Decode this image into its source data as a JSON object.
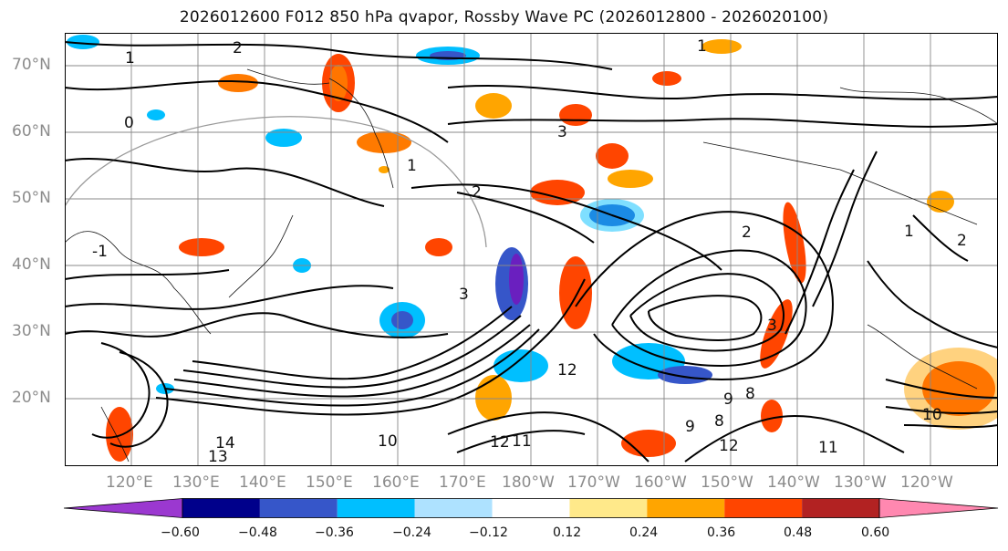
{
  "title": "2026012600 F012 850 hPa qvapor, Rossby Wave PC (2026012800 - 2026020100)",
  "lat_labels": [
    "70°N",
    "60°N",
    "50°N",
    "40°N",
    "30°N",
    "20°N"
  ],
  "lon_labels": [
    "120°E",
    "130°E",
    "140°E",
    "150°E",
    "160°E",
    "170°E",
    "180°W",
    "170°W",
    "160°W",
    "150°W",
    "140°W",
    "130°W",
    "120°W"
  ],
  "contour_labels": [
    "1",
    "2",
    "0",
    "1",
    "-1",
    "3",
    "2",
    "1",
    "2",
    "3",
    "12",
    "9",
    "8",
    "14",
    "13",
    "10",
    "11",
    "12",
    "9",
    "8",
    "12",
    "2",
    "1",
    "3",
    "11",
    "10"
  ],
  "colorbar": {
    "ticks": [
      "−0.60",
      "−0.48",
      "−0.36",
      "−0.24",
      "−0.12",
      "0.12",
      "0.24",
      "0.36",
      "0.48",
      "0.60"
    ],
    "colors": [
      "#9b38d0",
      "#00008b",
      "#3656c9",
      "#00bfff",
      "#aee2ff",
      "#ffffff",
      "#ffe98a",
      "#ffa500",
      "#ff4500",
      "#b22222",
      "#ff88b0"
    ]
  }
}
